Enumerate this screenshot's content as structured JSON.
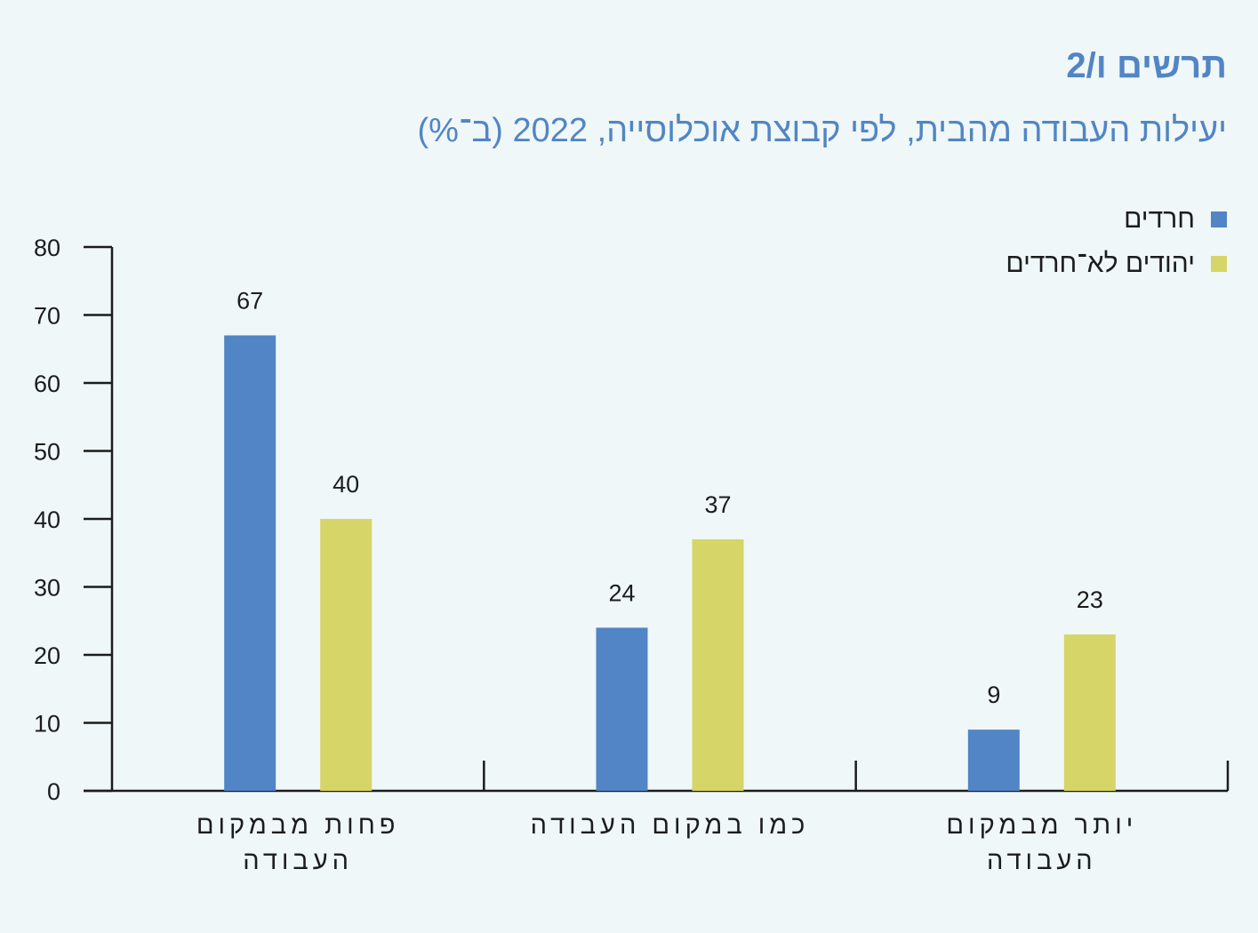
{
  "figure": {
    "label": "תרשים ו/2",
    "title": "יעילות העבודה מהבית, לפי קבוצת אוכלוסייה, 2022 (ב־%)"
  },
  "colors": {
    "background": "#eff7f8",
    "title": "#5285c4",
    "series_haredi": "#5185c5",
    "series_nonharedi": "#d6d567",
    "axis": "#1c1c1c"
  },
  "chart_data": {
    "type": "bar",
    "categories": [
      "פחות מבמקום העבודה",
      "כמו במקום העבודה",
      "יותר מבמקום העבודה"
    ],
    "category_lines": [
      [
        "פחות מבמקום",
        "העבודה"
      ],
      [
        "כמו במקום העבודה"
      ],
      [
        "יותר מבמקום",
        "העבודה"
      ]
    ],
    "series": [
      {
        "name": "חרדים",
        "values": [
          67,
          24,
          9
        ],
        "color": "#5185c5"
      },
      {
        "name": "יהודים לא־חרדים",
        "values": [
          40,
          37,
          23
        ],
        "color": "#d6d567"
      }
    ],
    "xlabel": "",
    "ylabel": "",
    "ylim": [
      0,
      80
    ],
    "yticks": [
      0,
      10,
      20,
      30,
      40,
      50,
      60,
      70,
      80
    ],
    "grid": false,
    "legend_position": "top-right"
  }
}
